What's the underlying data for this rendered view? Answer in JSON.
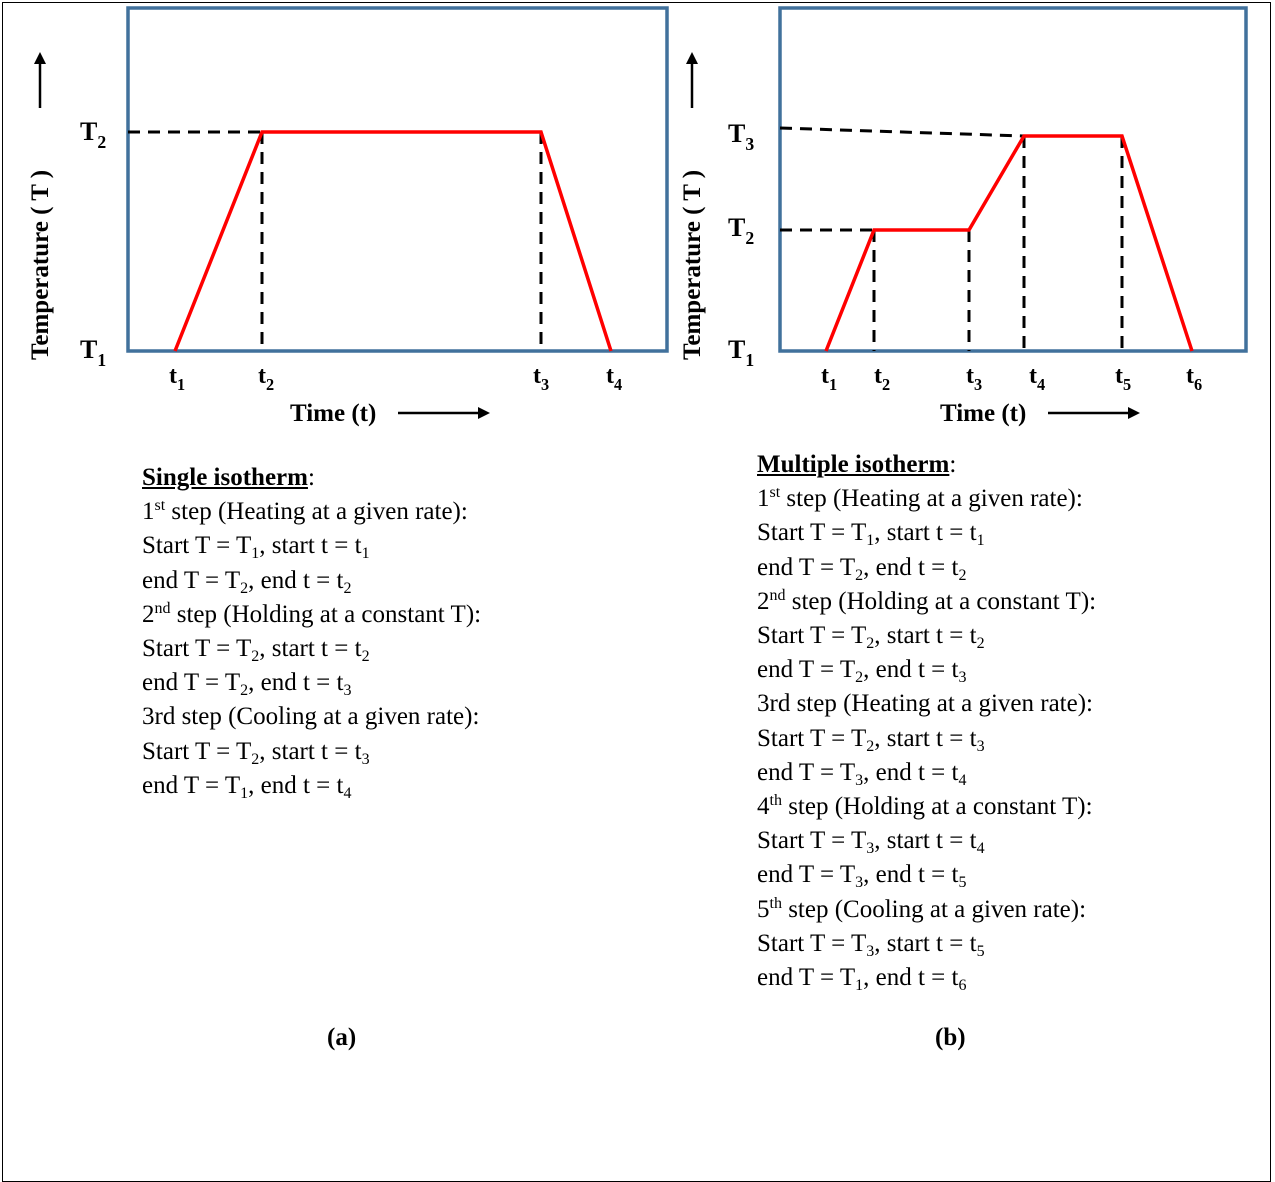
{
  "panel_a": {
    "y_axis_label": "Temperature ( T )",
    "x_axis_label": "Time (t)",
    "y_ticks": [
      {
        "base": "T",
        "sub": "2",
        "level": 2
      },
      {
        "base": "T",
        "sub": "1",
        "level": 1
      }
    ],
    "x_ticks": [
      {
        "base": "t",
        "sub": "1"
      },
      {
        "base": "t",
        "sub": "2"
      },
      {
        "base": "t",
        "sub": "3"
      },
      {
        "base": "t",
        "sub": "4"
      }
    ],
    "profile": [
      {
        "time": "t1",
        "temp": "T1"
      },
      {
        "time": "t2",
        "temp": "T2"
      },
      {
        "time": "t3",
        "temp": "T2"
      },
      {
        "time": "t4",
        "temp": "T1"
      }
    ],
    "heading": "Single isotherm",
    "lines": [
      [
        {
          "t": "1"
        },
        {
          "p": "st",
          "k": "sup"
        },
        {
          "t": " step (Heating at a given rate):"
        }
      ],
      [
        {
          "t": "Start T = T"
        },
        {
          "p": "1",
          "k": "sub"
        },
        {
          "t": ", start t = t"
        },
        {
          "p": "1",
          "k": "sub"
        }
      ],
      [
        {
          "t": "end T = T"
        },
        {
          "p": "2",
          "k": "sub"
        },
        {
          "t": ", end t = t"
        },
        {
          "p": "2",
          "k": "sub"
        }
      ],
      [
        {
          "t": "2"
        },
        {
          "p": "nd",
          "k": "sup"
        },
        {
          "t": " step (Holding at a constant T):"
        }
      ],
      [
        {
          "t": "Start T = T"
        },
        {
          "p": "2",
          "k": "sub"
        },
        {
          "t": ", start t = t"
        },
        {
          "p": "2",
          "k": "sub"
        }
      ],
      [
        {
          "t": "end T = T"
        },
        {
          "p": "2",
          "k": "sub"
        },
        {
          "t": ", end t = t"
        },
        {
          "p": "3",
          "k": "sub"
        }
      ],
      [
        {
          "t": "3rd step (Cooling at a given rate):"
        }
      ],
      [
        {
          "t": "Start T = T"
        },
        {
          "p": "2",
          "k": "sub"
        },
        {
          "t": ", start t = t"
        },
        {
          "p": "3",
          "k": "sub"
        }
      ],
      [
        {
          "t": "end T = T"
        },
        {
          "p": "1",
          "k": "sub"
        },
        {
          "t": ", end t = t"
        },
        {
          "p": "4",
          "k": "sub"
        }
      ]
    ],
    "label": "(a)"
  },
  "panel_b": {
    "y_axis_label": "Temperature ( T )",
    "x_axis_label": "Time (t)",
    "y_ticks": [
      {
        "base": "T",
        "sub": "3",
        "level": 3
      },
      {
        "base": "T",
        "sub": "2",
        "level": 2
      },
      {
        "base": "T",
        "sub": "1",
        "level": 1
      }
    ],
    "x_ticks": [
      {
        "base": "t",
        "sub": "1"
      },
      {
        "base": "t",
        "sub": "2"
      },
      {
        "base": "t",
        "sub": "3"
      },
      {
        "base": "t",
        "sub": "4"
      },
      {
        "base": "t",
        "sub": "5"
      },
      {
        "base": "t",
        "sub": "6"
      }
    ],
    "profile": [
      {
        "time": "t1",
        "temp": "T1"
      },
      {
        "time": "t2",
        "temp": "T2"
      },
      {
        "time": "t3",
        "temp": "T2"
      },
      {
        "time": "t4",
        "temp": "T3"
      },
      {
        "time": "t5",
        "temp": "T3"
      },
      {
        "time": "t6",
        "temp": "T1"
      }
    ],
    "heading": "Multiple isotherm",
    "lines": [
      [
        {
          "t": "1"
        },
        {
          "p": "st",
          "k": "sup"
        },
        {
          "t": " step (Heating at a given rate):"
        }
      ],
      [
        {
          "t": "Start T = T"
        },
        {
          "p": "1",
          "k": "sub"
        },
        {
          "t": ", start t = t"
        },
        {
          "p": "1",
          "k": "sub"
        }
      ],
      [
        {
          "t": "end T = T"
        },
        {
          "p": "2",
          "k": "sub"
        },
        {
          "t": ", end t = t"
        },
        {
          "p": "2",
          "k": "sub"
        }
      ],
      [
        {
          "t": "2"
        },
        {
          "p": "nd",
          "k": "sup"
        },
        {
          "t": " step (Holding at a constant T):"
        }
      ],
      [
        {
          "t": "Start T = T"
        },
        {
          "p": "2",
          "k": "sub"
        },
        {
          "t": ", start t = t"
        },
        {
          "p": "2",
          "k": "sub"
        }
      ],
      [
        {
          "t": "end T = T"
        },
        {
          "p": "2",
          "k": "sub"
        },
        {
          "t": ", end t = t"
        },
        {
          "p": "3",
          "k": "sub"
        }
      ],
      [
        {
          "t": "3rd step (Heating at a given rate):"
        }
      ],
      [
        {
          "t": "Start T = T"
        },
        {
          "p": "2",
          "k": "sub"
        },
        {
          "t": ", start t = t"
        },
        {
          "p": "3",
          "k": "sub"
        }
      ],
      [
        {
          "t": "end T = T"
        },
        {
          "p": "3",
          "k": "sub"
        },
        {
          "t": ", end t = t"
        },
        {
          "p": "4",
          "k": "sub"
        }
      ],
      [
        {
          "t": "4"
        },
        {
          "p": "th",
          "k": "sup"
        },
        {
          "t": " step (Holding at a constant T):"
        }
      ],
      [
        {
          "t": "Start T = T"
        },
        {
          "p": "3",
          "k": "sub"
        },
        {
          "t": ", start t = t"
        },
        {
          "p": "4",
          "k": "sub"
        }
      ],
      [
        {
          "t": "end T = T"
        },
        {
          "p": "3",
          "k": "sub"
        },
        {
          "t": ", end t = t"
        },
        {
          "p": "5",
          "k": "sub"
        }
      ],
      [
        {
          "t": "5"
        },
        {
          "p": "th",
          "k": "sup"
        },
        {
          "t": " step (Cooling at a given rate):"
        }
      ],
      [
        {
          "t": "Start T = T"
        },
        {
          "p": "3",
          "k": "sub"
        },
        {
          "t": ", start t = t"
        },
        {
          "p": "5",
          "k": "sub"
        }
      ],
      [
        {
          "t": "end T = T"
        },
        {
          "p": "1",
          "k": "sub"
        },
        {
          "t": ", end t = t"
        },
        {
          "p": "6",
          "k": "sub"
        }
      ]
    ],
    "label": "(b)"
  },
  "colors": {
    "box_border": "#41719c",
    "profile_line": "#ff0000",
    "guide_line": "#000000"
  }
}
